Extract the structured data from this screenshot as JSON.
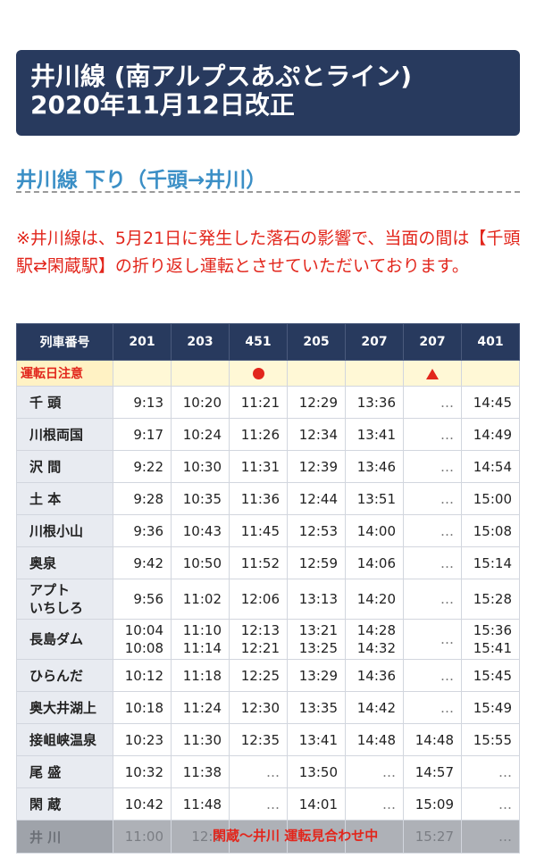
{
  "header": {
    "line1": "井川線 (南アルプスあぷとライン)",
    "line2": "2020年11月12日改正"
  },
  "section_title": "井川線 下り（千頭→井川）",
  "notice": "※井川線は、5月21日に発生した落石の影響で、当面の間は【千頭駅⇄閑蔵駅】の折り返し運転とさせていただいております。",
  "table": {
    "header_label": "列車番号",
    "trains": [
      "201",
      "203",
      "451",
      "205",
      "207",
      "207",
      "401"
    ],
    "notes_label": "運転日注意",
    "notes": [
      "",
      "",
      "circle",
      "",
      "",
      "triangle",
      ""
    ],
    "stations": [
      {
        "name": "千 頭",
        "times": [
          "9:13",
          "10:20",
          "11:21",
          "12:29",
          "13:36",
          "…",
          "14:45"
        ]
      },
      {
        "name": "川根両国",
        "times": [
          "9:17",
          "10:24",
          "11:26",
          "12:34",
          "13:41",
          "…",
          "14:49"
        ]
      },
      {
        "name": "沢 間",
        "times": [
          "9:22",
          "10:30",
          "11:31",
          "12:39",
          "13:46",
          "…",
          "14:54"
        ]
      },
      {
        "name": "土 本",
        "times": [
          "9:28",
          "10:35",
          "11:36",
          "12:44",
          "13:51",
          "…",
          "15:00"
        ]
      },
      {
        "name": "川根小山",
        "times": [
          "9:36",
          "10:43",
          "11:45",
          "12:53",
          "14:00",
          "…",
          "15:08"
        ]
      },
      {
        "name": "奥泉",
        "times": [
          "9:42",
          "10:50",
          "11:52",
          "12:59",
          "14:06",
          "…",
          "15:14"
        ]
      },
      {
        "name": "アプトいちしろ",
        "name_line1": "アプト",
        "name_line2": "いちしろ",
        "times": [
          "9:56",
          "11:02",
          "12:06",
          "13:13",
          "14:20",
          "…",
          "15:28"
        ]
      },
      {
        "name": "長島ダム",
        "arr": [
          "10:04",
          "11:10",
          "12:13",
          "13:21",
          "14:28",
          "…",
          "15:36"
        ],
        "dep": [
          "10:08",
          "11:14",
          "12:21",
          "13:25",
          "14:32",
          "",
          "15:41"
        ]
      },
      {
        "name": "ひらんだ",
        "times": [
          "10:12",
          "11:18",
          "12:25",
          "13:29",
          "14:36",
          "…",
          "15:45"
        ]
      },
      {
        "name": "奥大井湖上",
        "times": [
          "10:18",
          "11:24",
          "12:30",
          "13:35",
          "14:42",
          "…",
          "15:49"
        ]
      },
      {
        "name": "接岨峡温泉",
        "times": [
          "10:23",
          "11:30",
          "12:35",
          "13:41",
          "14:48",
          "14:48",
          "15:55"
        ]
      },
      {
        "name": "尾 盛",
        "times": [
          "10:32",
          "11:38",
          "…",
          "13:50",
          "…",
          "14:57",
          "…"
        ]
      },
      {
        "name": "閑 蔵",
        "times": [
          "10:42",
          "11:48",
          "…",
          "14:01",
          "…",
          "15:09",
          "…"
        ]
      },
      {
        "name": "井 川",
        "times": [
          "11:00",
          "12:0",
          "",
          "",
          "",
          "15:27",
          "…"
        ]
      }
    ],
    "suspended_note": "閑蔵〜井川 運転見合わせ中"
  },
  "colors": {
    "navy": "#283a5e",
    "accent_blue": "#3b8fc6",
    "alert_red": "#e2261c"
  }
}
